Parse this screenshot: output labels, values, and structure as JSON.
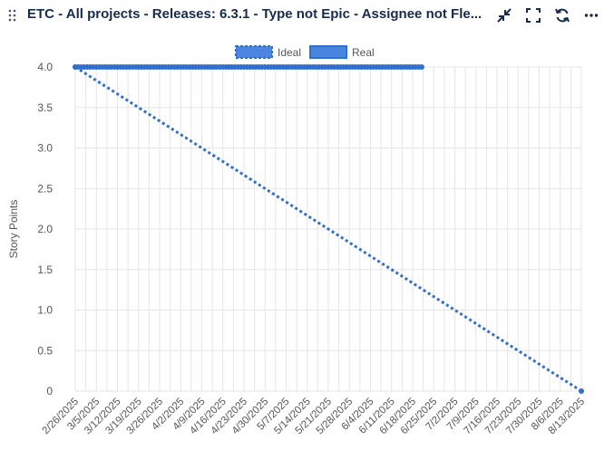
{
  "header": {
    "title": "ETC - All projects - Releases: 6.3.1 - Type not Epic - Assignee not Fle...",
    "icons": {
      "drag": "drag-handle-icon",
      "collapse": "collapse-icon",
      "fullscreen": "fullscreen-icon",
      "refresh": "refresh-icon",
      "more": "more-icon"
    }
  },
  "colors": {
    "series": "#2f6fcf",
    "series_fill": "#4a86e0",
    "grid": "#e5e5e5",
    "axis_text": "#555555",
    "title": "#172b4d"
  },
  "chart_data": {
    "type": "line",
    "x": [
      "2/26/2025",
      "3/5/2025",
      "3/12/2025",
      "3/19/2025",
      "3/26/2025",
      "4/2/2025",
      "4/9/2025",
      "4/16/2025",
      "4/23/2025",
      "4/30/2025",
      "5/7/2025",
      "5/14/2025",
      "5/21/2025",
      "5/28/2025",
      "6/4/2025",
      "6/11/2025",
      "6/18/2025",
      "6/25/2025",
      "7/2/2025",
      "7/9/2025",
      "7/16/2025",
      "7/23/2025",
      "7/30/2025",
      "8/6/2025",
      "8/13/2025"
    ],
    "ylabel": "Story Points",
    "xlabel": "",
    "ylim": [
      0,
      4
    ],
    "yticks": [
      "0",
      "0.5",
      "1.0",
      "1.5",
      "2.0",
      "2.5",
      "3.0",
      "3.5",
      "4.0"
    ],
    "grid": true,
    "legend": "top-center",
    "series": [
      {
        "name": "Ideal",
        "style": "dotted",
        "points": [
          {
            "x": "2/26/2025",
            "y": 4.0
          },
          {
            "x": "8/13/2025",
            "y": 0
          }
        ]
      },
      {
        "name": "Real",
        "style": "solid",
        "points_per_day_from": "2/26/2025",
        "points_per_day_to": "6/21/2025",
        "values_constant": 4.0
      }
    ]
  }
}
